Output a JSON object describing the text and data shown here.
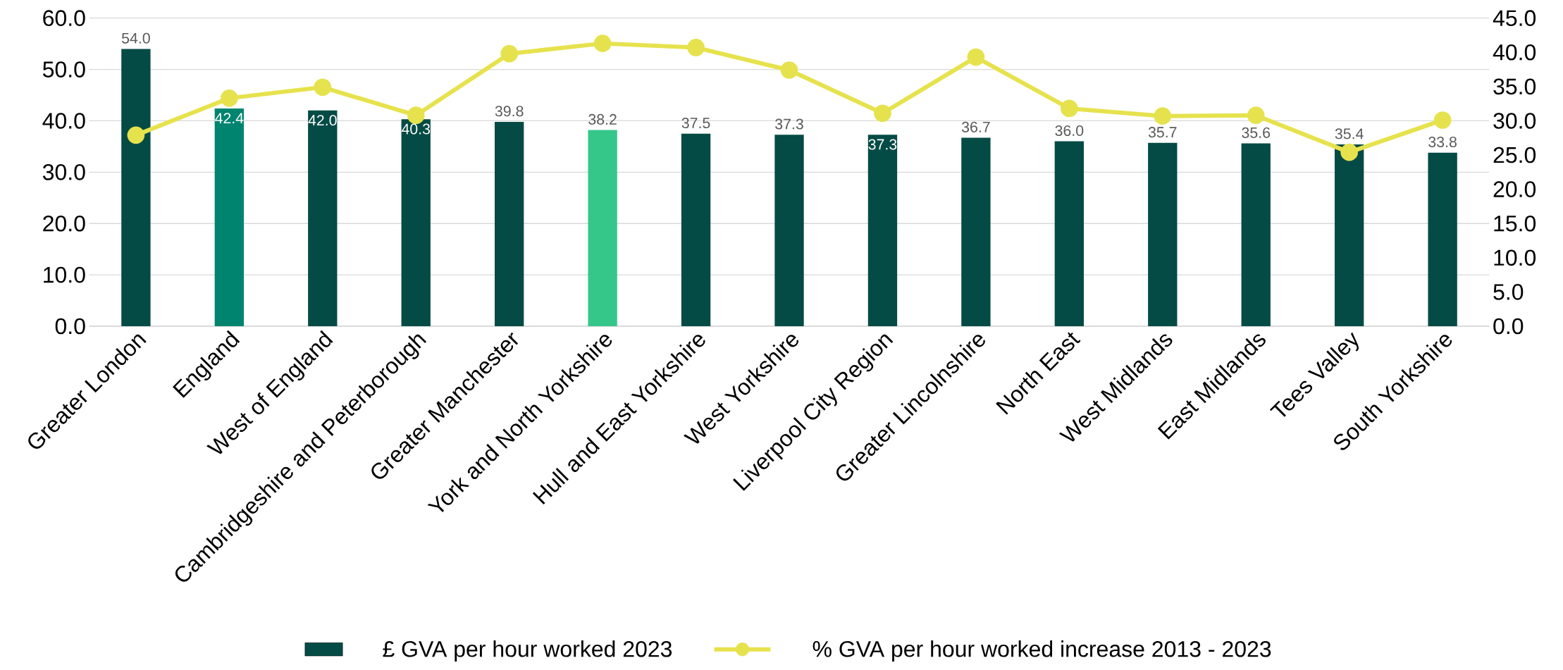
{
  "chart_data": {
    "type": "bar",
    "categories": [
      "Greater London",
      "England",
      "West of England",
      "Cambridgeshire and Peterborough",
      "Greater Manchester",
      "York and North Yorkshire",
      "Hull and East Yorkshire",
      "West Yorkshire",
      "Liverpool City Region",
      "Greater Lincolnshire",
      "North East",
      "West Midlands",
      "East Midlands",
      "Tees Valley",
      "South Yorkshire"
    ],
    "series": [
      {
        "name": "£ GVA per hour worked 2023",
        "type": "bar",
        "color": "#054b45",
        "colors": [
          "#054b45",
          "#00846f",
          "#054b45",
          "#054b45",
          "#054b45",
          "#35c68a",
          "#054b45",
          "#054b45",
          "#054b45",
          "#054b45",
          "#054b45",
          "#054b45",
          "#054b45",
          "#054b45",
          "#054b45"
        ],
        "values": [
          54.0,
          42.4,
          42.0,
          40.3,
          39.8,
          38.2,
          37.5,
          37.3,
          37.3,
          36.7,
          36.0,
          35.7,
          35.6,
          35.4,
          33.8
        ],
        "value_labels": [
          "54.0",
          "42.4",
          "42.0",
          "40.3",
          "39.8",
          "38.2",
          "37.5",
          "37.3",
          "37.3",
          "36.7",
          "36.0",
          "35.7",
          "35.6",
          "35.4",
          "33.8"
        ]
      },
      {
        "name": "% GVA per hour worked increase 2013 - 2023",
        "type": "line",
        "axis": "y2",
        "color": "#e6e24d",
        "marker": "circle",
        "values": [
          27.9,
          33.3,
          34.9,
          30.8,
          39.8,
          41.3,
          40.7,
          37.4,
          31.1,
          39.3,
          31.8,
          30.7,
          30.8,
          25.4,
          30.1
        ]
      }
    ],
    "ylim": [
      0,
      60
    ],
    "yticks": [
      {
        "value": 0,
        "label": "0.0"
      },
      {
        "value": 10,
        "label": "10.0"
      },
      {
        "value": 20,
        "label": "20.0"
      },
      {
        "value": 30,
        "label": "30.0"
      },
      {
        "value": 40,
        "label": "40.0"
      },
      {
        "value": 50,
        "label": "50.0"
      },
      {
        "value": 60,
        "label": "60.0"
      }
    ],
    "y2lim": [
      0,
      45
    ],
    "y2ticks": [
      {
        "value": 0,
        "label": "0.0"
      },
      {
        "value": 5,
        "label": "5.0"
      },
      {
        "value": 10,
        "label": "10.0"
      },
      {
        "value": 15,
        "label": "15.0"
      },
      {
        "value": 20,
        "label": "20.0"
      },
      {
        "value": 25,
        "label": "25.0"
      },
      {
        "value": 30,
        "label": "30.0"
      },
      {
        "value": 35,
        "label": "35.0"
      },
      {
        "value": 40,
        "label": "40.0"
      },
      {
        "value": 45,
        "label": "45.0"
      }
    ],
    "grid": "y",
    "legend": "bottom"
  }
}
